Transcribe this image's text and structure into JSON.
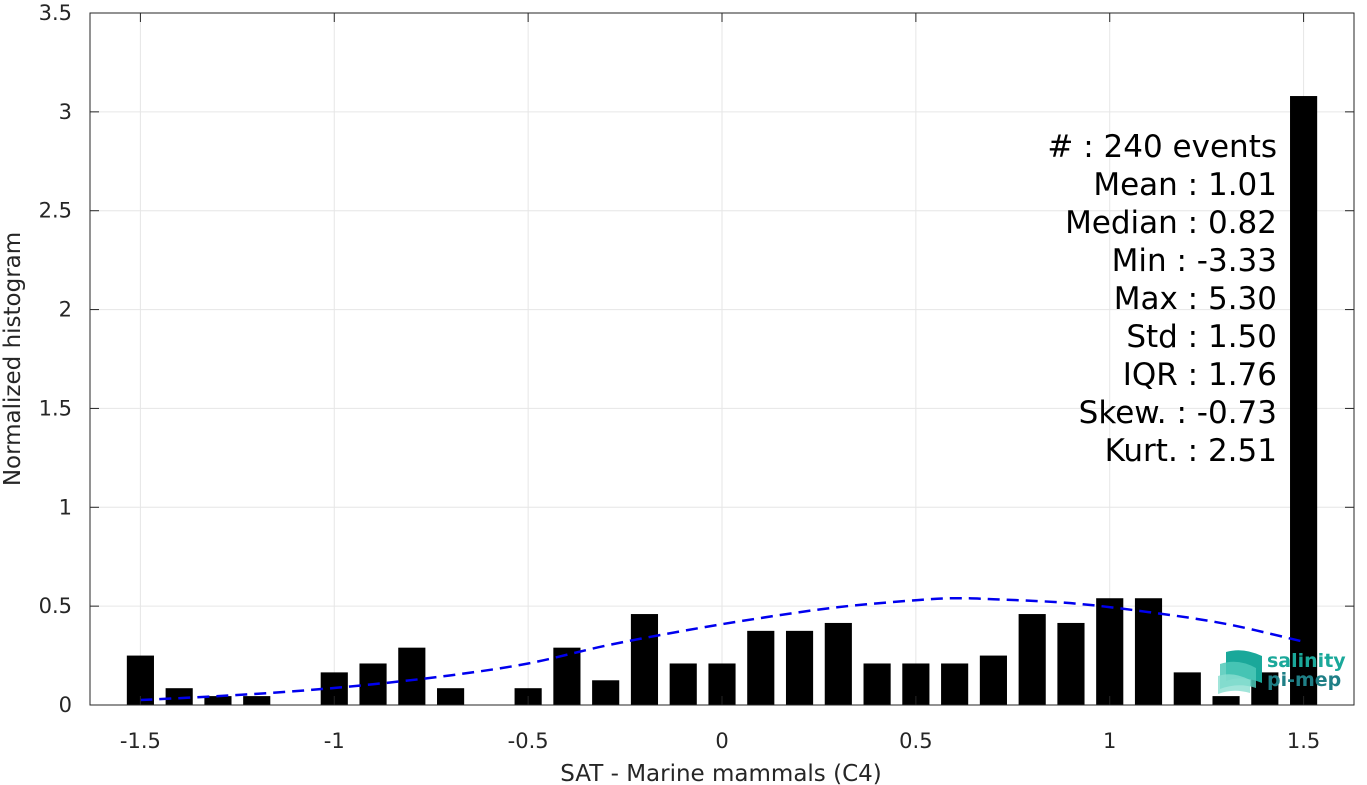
{
  "chart_data": {
    "type": "bar",
    "xlabel": "SAT - Marine mammals (C4)",
    "ylabel": "Normalized histogram",
    "xlim": [
      -1.63,
      1.63
    ],
    "ylim": [
      0,
      3.5
    ],
    "grid": true,
    "x_ticks": [
      -1.5,
      -1,
      -0.5,
      0,
      0.5,
      1,
      1.5
    ],
    "x_tick_labels": [
      "-1.5",
      "-1",
      "-0.5",
      "0",
      "0.5",
      "1",
      "1.5"
    ],
    "y_ticks": [
      0,
      0.5,
      1,
      1.5,
      2,
      2.5,
      3,
      3.5
    ],
    "y_tick_labels": [
      "0",
      "0.5",
      "1",
      "1.5",
      "2",
      "2.5",
      "3",
      "3.5"
    ],
    "bar_width": 0.07,
    "x": [
      -1.5,
      -1.4,
      -1.3,
      -1.2,
      -1.1,
      -1.0,
      -0.9,
      -0.8,
      -0.7,
      -0.6,
      -0.5,
      -0.4,
      -0.3,
      -0.2,
      -0.1,
      0.0,
      0.1,
      0.2,
      0.3,
      0.4,
      0.5,
      0.6,
      0.7,
      0.8,
      0.9,
      1.0,
      1.1,
      1.2,
      1.3,
      1.4,
      1.5
    ],
    "values": [
      0.25,
      0.085,
      0.045,
      0.045,
      0,
      0.165,
      0.21,
      0.29,
      0.085,
      0,
      0.085,
      0.29,
      0.125,
      0.46,
      0.21,
      0.21,
      0.375,
      0.375,
      0.415,
      0.21,
      0.21,
      0.21,
      0.25,
      0.46,
      0.415,
      0.54,
      0.54,
      0.165,
      0.045,
      0.165,
      3.08
    ],
    "bar_color": "#000000",
    "fit_curve": {
      "style": "dashed",
      "color": "#0000ee",
      "x": [
        -1.5,
        -1.3,
        -1.1,
        -0.9,
        -0.7,
        -0.5,
        -0.3,
        -0.1,
        0.1,
        0.3,
        0.5,
        0.6,
        0.7,
        0.9,
        1.1,
        1.3,
        1.5
      ],
      "y": [
        0.025,
        0.045,
        0.07,
        0.105,
        0.15,
        0.21,
        0.3,
        0.375,
        0.44,
        0.495,
        0.53,
        0.54,
        0.535,
        0.515,
        0.47,
        0.41,
        0.32
      ]
    }
  },
  "stats": [
    {
      "label": "#",
      "separator": ":",
      "value": "240 events"
    },
    {
      "label": "Mean",
      "separator": ":",
      "value": "1.01"
    },
    {
      "label": "Median",
      "separator": ":",
      "value": "0.82"
    },
    {
      "label": "Min",
      "separator": ":",
      "value": "-3.33"
    },
    {
      "label": "Max",
      "separator": ":",
      "value": "5.30"
    },
    {
      "label": "Std",
      "separator": ":",
      "value": "1.50"
    },
    {
      "label": "IQR",
      "separator": ":",
      "value": "1.76"
    },
    {
      "label": "Skew.",
      "separator": ":",
      "value": "-0.73"
    },
    {
      "label": "Kurt.",
      "separator": ":",
      "value": "2.51"
    }
  ],
  "logo": {
    "line1": "salinity",
    "line2": "pi-mep",
    "color_line1": "#1aa89a",
    "color_line2": "#1f7f86"
  }
}
